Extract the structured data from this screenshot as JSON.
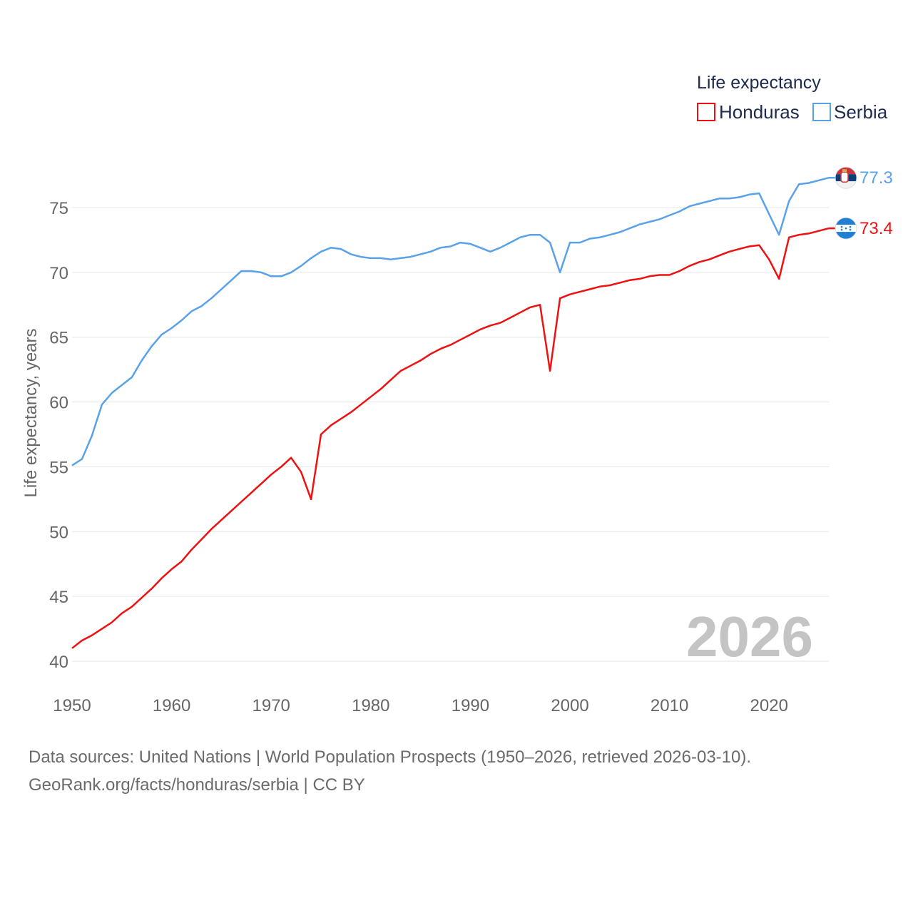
{
  "chart_data": {
    "type": "line",
    "legend_title": "Life expectancy",
    "ylabel": "Life expectancy, years",
    "xlabel": "",
    "xlim": [
      1950,
      2026
    ],
    "ylim": [
      40,
      79
    ],
    "yticks": [
      40,
      45,
      50,
      55,
      60,
      65,
      70,
      75
    ],
    "xticks": [
      1950,
      1960,
      1970,
      1980,
      1990,
      2000,
      2010,
      2020
    ],
    "year_label": "2026",
    "legend_position": "top-right",
    "x": [
      1950,
      1951,
      1952,
      1953,
      1954,
      1955,
      1956,
      1957,
      1958,
      1959,
      1960,
      1961,
      1962,
      1963,
      1964,
      1965,
      1966,
      1967,
      1968,
      1969,
      1970,
      1971,
      1972,
      1973,
      1974,
      1975,
      1976,
      1977,
      1978,
      1979,
      1980,
      1981,
      1982,
      1983,
      1984,
      1985,
      1986,
      1987,
      1988,
      1989,
      1990,
      1991,
      1992,
      1993,
      1994,
      1995,
      1996,
      1997,
      1998,
      1999,
      2000,
      2001,
      2002,
      2003,
      2004,
      2005,
      2006,
      2007,
      2008,
      2009,
      2010,
      2011,
      2012,
      2013,
      2014,
      2015,
      2016,
      2017,
      2018,
      2019,
      2020,
      2021,
      2022,
      2023,
      2024,
      2025,
      2026
    ],
    "series": [
      {
        "name": "Honduras",
        "color": "#ee1111",
        "end_label": "73.4",
        "flag": "honduras-flag",
        "values": [
          41.0,
          41.6,
          42.0,
          42.5,
          43.0,
          43.7,
          44.2,
          44.9,
          45.6,
          46.4,
          47.1,
          47.7,
          48.6,
          49.4,
          50.2,
          50.9,
          51.6,
          52.3,
          53.0,
          53.7,
          54.4,
          55.0,
          55.7,
          54.6,
          52.5,
          57.5,
          58.2,
          58.7,
          59.2,
          59.8,
          60.4,
          61.0,
          61.7,
          62.4,
          62.8,
          63.2,
          63.7,
          64.1,
          64.4,
          64.8,
          65.2,
          65.6,
          65.9,
          66.1,
          66.5,
          66.9,
          67.3,
          67.5,
          62.4,
          68.0,
          68.3,
          68.5,
          68.7,
          68.9,
          69.0,
          69.2,
          69.4,
          69.5,
          69.7,
          69.8,
          69.8,
          70.1,
          70.5,
          70.8,
          71.0,
          71.3,
          71.6,
          71.8,
          72.0,
          72.1,
          71.0,
          69.5,
          72.7,
          72.9,
          73.0,
          73.2,
          73.4
        ]
      },
      {
        "name": "Serbia",
        "color": "#5aa2e8",
        "end_label": "77.3",
        "flag": "serbia-flag",
        "values": [
          55.1,
          55.6,
          57.4,
          59.8,
          60.7,
          61.3,
          61.9,
          63.2,
          64.3,
          65.2,
          65.7,
          66.3,
          67.0,
          67.4,
          68.0,
          68.7,
          69.4,
          70.1,
          70.1,
          70.0,
          69.7,
          69.7,
          70.0,
          70.5,
          71.1,
          71.6,
          71.9,
          71.8,
          71.4,
          71.2,
          71.1,
          71.1,
          71.0,
          71.1,
          71.2,
          71.4,
          71.6,
          71.9,
          72.0,
          72.3,
          72.2,
          71.9,
          71.6,
          71.9,
          72.3,
          72.7,
          72.9,
          72.9,
          72.3,
          70.0,
          72.3,
          72.3,
          72.6,
          72.7,
          72.9,
          73.1,
          73.4,
          73.7,
          73.9,
          74.1,
          74.4,
          74.7,
          75.1,
          75.3,
          75.5,
          75.7,
          75.7,
          75.8,
          76.0,
          76.1,
          74.5,
          72.9,
          75.5,
          76.8,
          76.9,
          77.1,
          77.3
        ]
      }
    ]
  },
  "source_line_1": "Data sources: United Nations | World Population Prospects (1950–2026, retrieved 2026-03-10).",
  "source_line_2": "GeoRank.org/facts/honduras/serbia | CC BY"
}
